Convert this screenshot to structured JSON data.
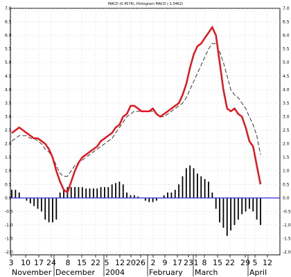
{
  "chart_data": {
    "type": "line",
    "title": "MACD (0.4576), Histogram MACD (-1.0462)",
    "xlabel": "",
    "ylabel": "",
    "ylim": [
      -2.1,
      7.0
    ],
    "grid": true,
    "y_ticks": [
      "7.0",
      "6.5",
      "6.0",
      "5.5",
      "5.0",
      "4.5",
      "4.0",
      "3.5",
      "3.0",
      "2.5",
      "2.0",
      "1.5",
      "1.0",
      "0.5",
      "0.0",
      "-0.5",
      "-1.0",
      "-1.5",
      "-2.0"
    ],
    "x_ticks": [
      "3",
      "10",
      "17",
      "24",
      "8",
      "15",
      "22",
      "5",
      "12",
      "20",
      "26",
      "2",
      "9",
      "17",
      "23",
      "1",
      "8",
      "15",
      "22",
      "29",
      "5",
      "12"
    ],
    "month_labels": [
      "November",
      "December",
      "2004",
      "February",
      "March",
      "April"
    ],
    "series": [
      {
        "values": [
          2.4,
          2.5,
          2.6,
          2.5,
          2.4,
          2.3,
          2.2,
          2.2,
          2.1,
          2.0,
          1.8,
          1.5,
          1.0,
          0.6,
          0.3,
          0.2,
          0.6,
          1.0,
          1.3,
          1.5,
          1.6,
          1.7,
          1.8,
          1.9,
          2.1,
          2.2,
          2.3,
          2.4,
          2.6,
          2.7,
          3.0,
          3.1,
          3.4,
          3.4,
          3.3,
          3.2,
          3.2,
          3.2,
          3.3,
          3.1,
          3.0,
          3.1,
          3.2,
          3.3,
          3.4,
          3.5,
          3.8,
          4.2,
          4.8,
          5.3,
          5.6,
          5.7,
          5.9,
          6.1,
          6.3,
          6.0,
          5.0,
          4.0,
          3.3,
          3.2,
          3.3,
          3.1,
          3.0,
          2.6,
          2.1,
          1.9,
          1.2,
          0.5
        ]
      },
      {
        "values": [
          2.1,
          2.2,
          2.3,
          2.3,
          2.3,
          2.2,
          2.2,
          2.1,
          2.0,
          1.8,
          1.7,
          1.5,
          1.2,
          0.9,
          0.8,
          0.8,
          1.0,
          1.2,
          1.3,
          1.4,
          1.5,
          1.6,
          1.7,
          1.8,
          1.9,
          2.0,
          2.1,
          2.2,
          2.4,
          2.6,
          2.8,
          3.0,
          3.1,
          3.2,
          3.2,
          3.2,
          3.2,
          3.2,
          3.2,
          3.1,
          3.0,
          3.0,
          3.1,
          3.2,
          3.3,
          3.4,
          3.5,
          3.7,
          4.0,
          4.3,
          4.6,
          4.9,
          5.2,
          5.5,
          5.7,
          5.7,
          5.4,
          5.0,
          4.5,
          4.0,
          3.8,
          3.7,
          3.5,
          3.3,
          3.0,
          2.7,
          2.3,
          1.6
        ]
      }
    ],
    "histogram": [
      0.3,
      0.3,
      0.2,
      0.0,
      -0.1,
      -0.2,
      -0.3,
      -0.4,
      -0.5,
      -0.8,
      -0.9,
      -0.9,
      -0.8,
      0.2,
      0.3,
      0.4,
      0.4,
      0.4,
      0.4,
      0.4,
      0.35,
      0.35,
      0.35,
      0.35,
      0.4,
      0.4,
      0.4,
      0.5,
      0.55,
      0.6,
      0.5,
      0.2,
      0.1,
      0.1,
      0.05,
      0.0,
      -0.1,
      -0.15,
      -0.15,
      -0.1,
      0.0,
      0.1,
      0.2,
      0.2,
      0.3,
      0.5,
      0.8,
      1.1,
      1.2,
      1.1,
      0.9,
      0.8,
      0.7,
      0.6,
      0.2,
      -0.4,
      -0.9,
      -1.1,
      -1.4,
      -1.2,
      -1.0,
      -0.8,
      -0.6,
      -0.5,
      -0.4,
      -0.5,
      -0.8,
      -1.0
    ],
    "colors": {
      "macd_line": "#e8141b",
      "signal_line": "#333333",
      "histogram": "#000000",
      "zero_line": "#2a2ad4",
      "grid": "#bfbfbf"
    }
  }
}
